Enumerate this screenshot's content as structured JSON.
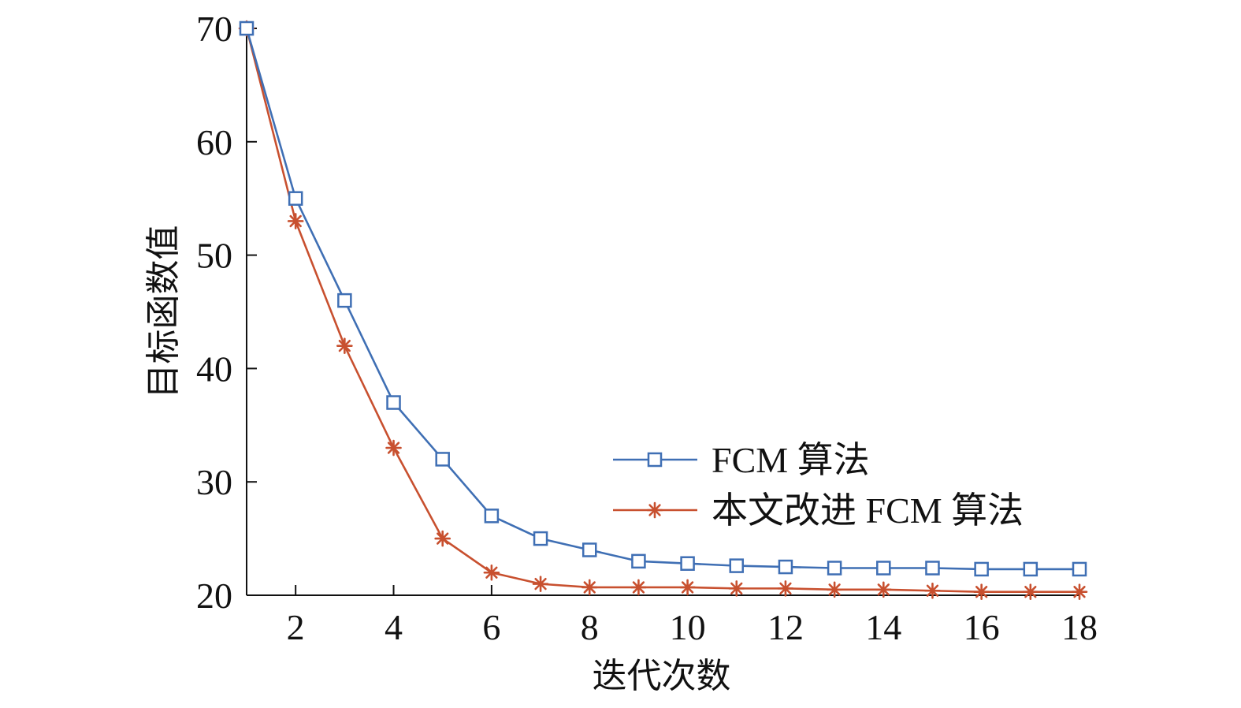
{
  "chart_data": {
    "type": "line",
    "xlabel": "迭代次数",
    "ylabel": "目标函数值",
    "xlim": [
      1,
      18
    ],
    "ylim": [
      20,
      70
    ],
    "xticks": [
      2,
      4,
      6,
      8,
      10,
      12,
      14,
      16,
      18
    ],
    "yticks": [
      20,
      30,
      40,
      50,
      60,
      70
    ],
    "grid": false,
    "legend_position": "center-right",
    "x": [
      1,
      2,
      3,
      4,
      5,
      6,
      7,
      8,
      9,
      10,
      11,
      12,
      13,
      14,
      15,
      16,
      17,
      18
    ],
    "series": [
      {
        "name": "FCM 算法",
        "color": "#3f6fb4",
        "marker": "square",
        "values": [
          70,
          55,
          46,
          37,
          32,
          27,
          25,
          24,
          23,
          22.8,
          22.6,
          22.5,
          22.4,
          22.4,
          22.4,
          22.3,
          22.3,
          22.3
        ]
      },
      {
        "name": "本文改进 FCM 算法",
        "color": "#c8502f",
        "marker": "asterisk",
        "values": [
          70,
          53,
          42,
          33,
          25,
          22,
          21,
          20.7,
          20.7,
          20.7,
          20.6,
          20.6,
          20.5,
          20.5,
          20.4,
          20.3,
          20.3,
          20.3
        ]
      }
    ]
  }
}
